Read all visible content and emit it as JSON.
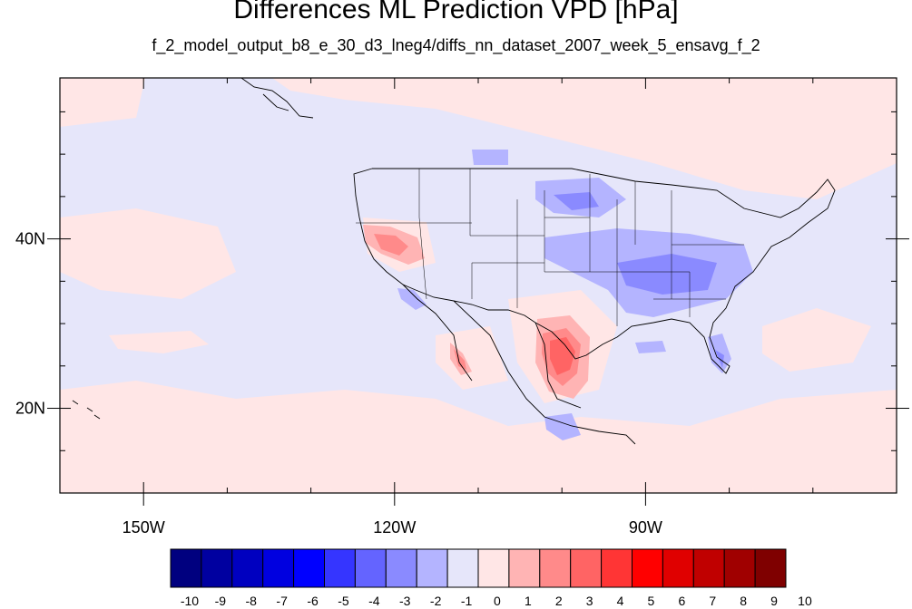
{
  "title": "Differences ML Prediction VPD [hPa]",
  "subtitle": "f_2_model_output_b8_e_30_d3_lneg4/diffs_nn_dataset_2007_week_5_ensavg_f_2",
  "map": {
    "lon_range": [
      -160,
      -60
    ],
    "lat_range": [
      10,
      59
    ],
    "lat_ticks": [
      {
        "value": 40,
        "label": "40N"
      },
      {
        "value": 20,
        "label": "20N"
      }
    ],
    "lon_ticks": [
      {
        "value": -150,
        "label": "150W"
      },
      {
        "value": -120,
        "label": "120W"
      },
      {
        "value": -90,
        "label": "90W"
      }
    ],
    "background_color": "#e6e6fa"
  },
  "colorbar": {
    "labels": [
      "-10",
      "-9",
      "-8",
      "-7",
      "-6",
      "-5",
      "-4",
      "-3",
      "-2",
      "-1",
      "0",
      "1",
      "2",
      "3",
      "4",
      "5",
      "6",
      "7",
      "8",
      "9",
      "10"
    ],
    "colors": [
      "#00007f",
      "#0000a0",
      "#0000c0",
      "#0000e0",
      "#0000ff",
      "#3535ff",
      "#6464ff",
      "#8a8aff",
      "#b4b4ff",
      "#e6e6fa",
      "#ffe6e6",
      "#ffb4b4",
      "#ff8a8a",
      "#ff6464",
      "#ff3535",
      "#ff0000",
      "#e00000",
      "#c00000",
      "#a00000",
      "#7f0000"
    ]
  }
}
